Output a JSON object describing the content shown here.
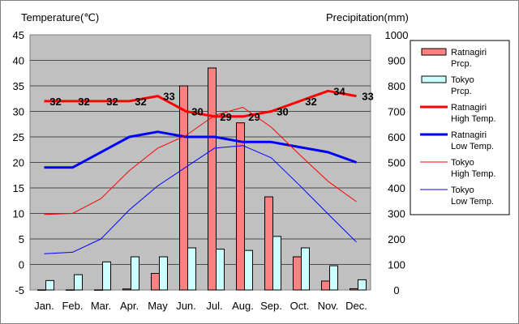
{
  "chart_data": {
    "type": "bar+line",
    "categories": [
      "Jan.",
      "Feb.",
      "Mar.",
      "Apr.",
      "May",
      "Jun.",
      "Jul.",
      "Aug.",
      "Sep.",
      "Oct.",
      "Nov.",
      "Dec."
    ],
    "left_axis": {
      "label": "Temperature(℃)",
      "min": -5,
      "max": 45,
      "step": 5
    },
    "right_axis": {
      "label": "Precipitation(mm)",
      "min": 0,
      "max": 1000,
      "step": 100
    },
    "bar_series": [
      {
        "name": "Ratnagiri Prcp.",
        "axis": "right",
        "color": "#ff8080",
        "values": [
          0.5,
          0.5,
          0.5,
          4,
          65,
          800,
          870,
          655,
          365,
          130,
          35,
          5
        ]
      },
      {
        "name": "Tokyo Prcp.",
        "axis": "right",
        "color": "#ccffff",
        "values": [
          37,
          60,
          110,
          130,
          130,
          165,
          160,
          155,
          210,
          165,
          95,
          40
        ]
      }
    ],
    "line_series": [
      {
        "name": "Ratnagiri High Temp.",
        "axis": "left",
        "color": "#ff0000",
        "thick": true,
        "values": [
          32,
          32,
          32,
          32,
          33,
          30,
          29,
          29,
          30,
          32,
          34,
          33
        ],
        "labels": [
          "32",
          "32",
          "32",
          "32",
          "33",
          "30",
          "29",
          "29",
          "30",
          "32",
          "34",
          "33"
        ]
      },
      {
        "name": "Ratnagiri Low Temp.",
        "axis": "left",
        "color": "#0000ff",
        "thick": true,
        "values": [
          19,
          19,
          22,
          25,
          26,
          25,
          25,
          24,
          24,
          23,
          22,
          20
        ]
      },
      {
        "name": "Tokyo High Temp.",
        "axis": "left",
        "color": "#ff0000",
        "thick": false,
        "values": [
          9.8,
          10.0,
          12.9,
          18.4,
          22.8,
          25.3,
          29.2,
          30.8,
          26.9,
          21.5,
          16.3,
          12.3
        ]
      },
      {
        "name": "Tokyo Low Temp.",
        "axis": "left",
        "color": "#0000ff",
        "thick": false,
        "values": [
          2.1,
          2.4,
          5.0,
          10.7,
          15.4,
          19.1,
          22.8,
          23.3,
          20.9,
          15.5,
          9.9,
          4.4
        ]
      }
    ],
    "legend": [
      {
        "line1": "Ratnagiri",
        "line2": "Prcp."
      },
      {
        "line1": "Tokyo",
        "line2": "Prcp."
      },
      {
        "line1": "Ratnagiri",
        "line2": "High Temp."
      },
      {
        "line1": "Ratnagiri",
        "line2": "Low Temp."
      },
      {
        "line1": "Tokyo",
        "line2": "High Temp."
      },
      {
        "line1": "Tokyo",
        "line2": "Low Temp."
      }
    ],
    "legend_position": "right",
    "plot_background": "#c0c0c0",
    "grid": true
  }
}
